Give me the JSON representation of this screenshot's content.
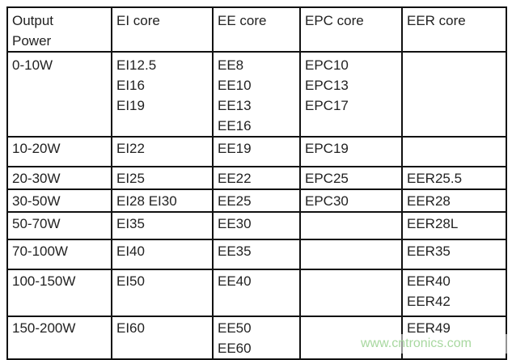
{
  "headers": [
    [
      "Output",
      "Power"
    ],
    [
      "EI core"
    ],
    [
      "EE core"
    ],
    [
      "EPC core"
    ],
    [
      "EER core"
    ]
  ],
  "rows": [
    [
      [
        "0-10W"
      ],
      [
        "EI12.5",
        "EI16",
        "EI19"
      ],
      [
        "EE8",
        "EE10",
        "EE13",
        "EE16"
      ],
      [
        "EPC10",
        "EPC13",
        "EPC17"
      ],
      []
    ],
    [
      [
        "10-20W"
      ],
      [
        "EI22"
      ],
      [
        "EE19"
      ],
      [
        "EPC19"
      ],
      []
    ],
    [
      [
        "20-30W"
      ],
      [
        "EI25"
      ],
      [
        "EE22"
      ],
      [
        "EPC25"
      ],
      [
        "EER25.5"
      ]
    ],
    [
      [
        "30-50W"
      ],
      [
        "EI28 EI30"
      ],
      [
        "EE25"
      ],
      [
        "EPC30"
      ],
      [
        "EER28"
      ]
    ],
    [
      [
        "50-70W"
      ],
      [
        "EI35"
      ],
      [
        "EE30"
      ],
      [],
      [
        "EER28L"
      ]
    ],
    [
      [
        "70-100W"
      ],
      [
        "EI40"
      ],
      [
        "EE35"
      ],
      [],
      [
        "EER35"
      ]
    ],
    [
      [
        "100-150W"
      ],
      [
        "EI50"
      ],
      [
        "EE40"
      ],
      [],
      [
        "EER40",
        "EER42"
      ]
    ],
    [
      [
        "150-200W"
      ],
      [
        "EI60"
      ],
      [
        "EE50",
        "EE60"
      ],
      [],
      [
        "EER49"
      ]
    ]
  ],
  "watermark": "www.cntronics.com"
}
